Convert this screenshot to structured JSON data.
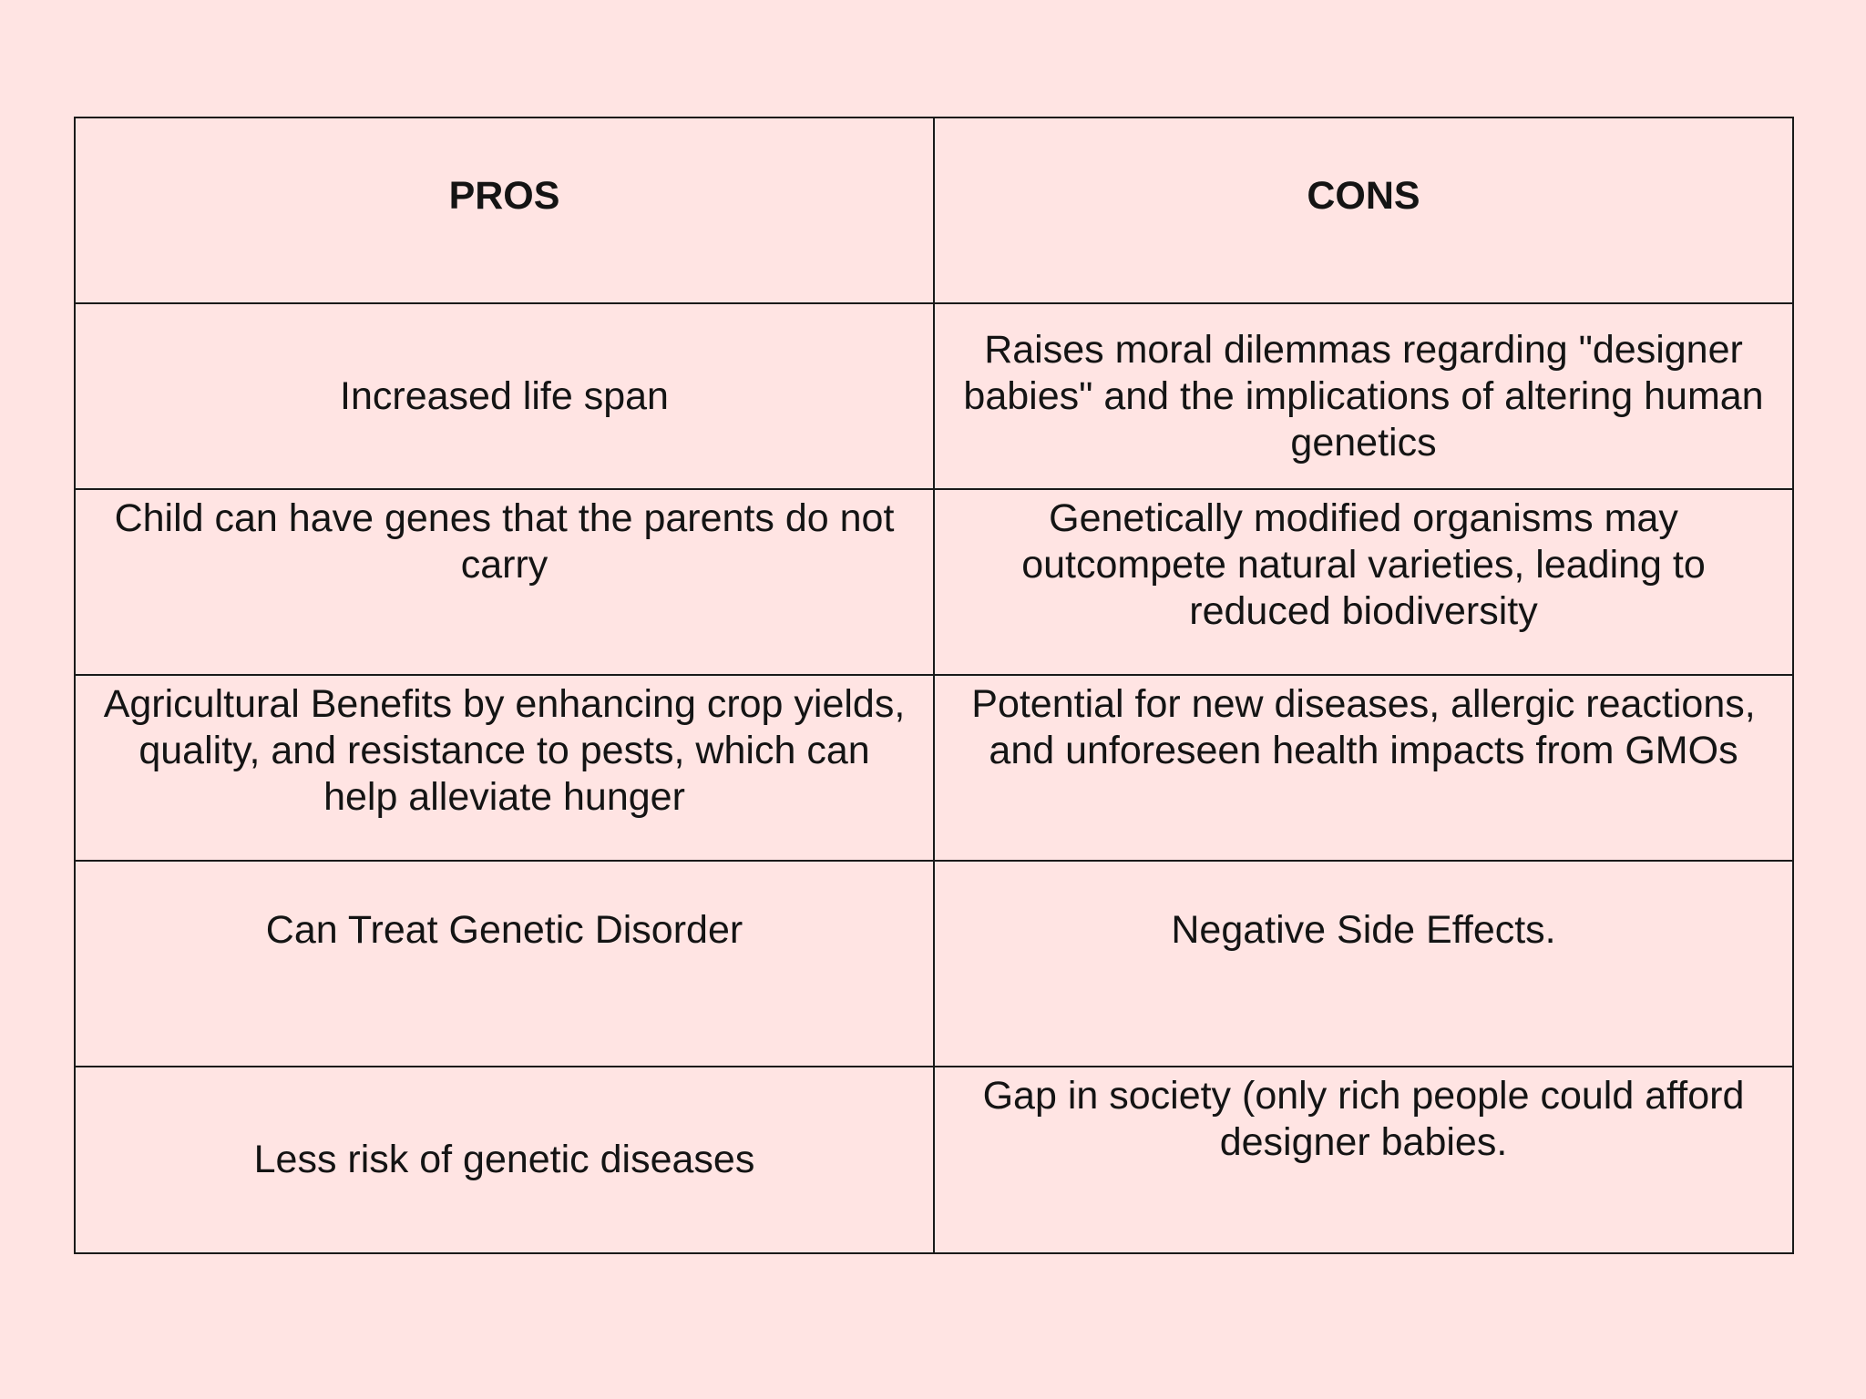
{
  "table": {
    "headers": {
      "pros": "PROS",
      "cons": "CONS"
    },
    "rows": [
      {
        "pro": "Increased life span",
        "con": "Raises moral dilemmas regarding \"designer babies\" and the implications of altering human genetics"
      },
      {
        "pro": "Child can have genes that the parents do not carry",
        "con": "Genetically modified organisms may outcompete natural varieties, leading to reduced biodiversity"
      },
      {
        "pro": "Agricultural Benefits by enhancing crop yields, quality, and resistance to pests, which can help alleviate hunger",
        "con": "Potential for new diseases, allergic reactions, and unforeseen health impacts from GMOs"
      },
      {
        "pro": "Can Treat Genetic Disorder",
        "con": "Negative Side Effects."
      },
      {
        "pro": "Less risk of genetic diseases",
        "con": "Gap in society (only rich people could afford designer babies."
      }
    ]
  },
  "colors": {
    "background": "#ffe4e3",
    "text": "#141414",
    "border": "#1a1a1a"
  }
}
